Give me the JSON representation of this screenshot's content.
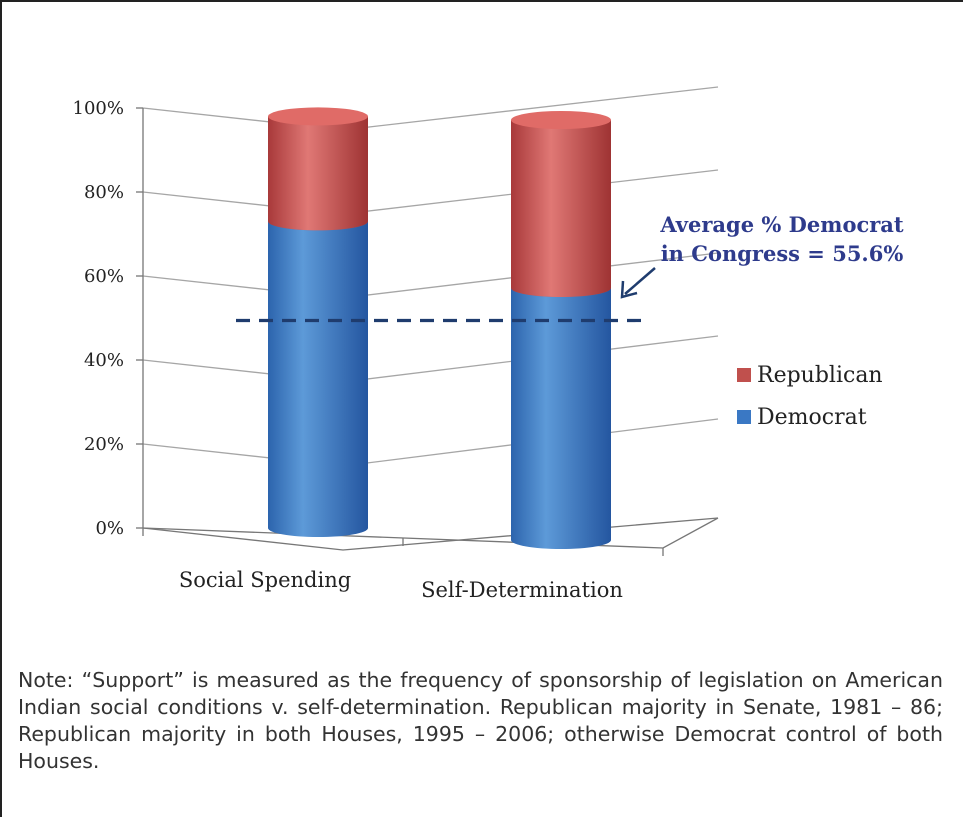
{
  "chart_data": {
    "type": "bar",
    "stacked": true,
    "categories": [
      "Social Spending",
      "Self-Determination"
    ],
    "series": [
      {
        "name": "Democrat",
        "values": [
          73,
          60
        ],
        "color": "#3a78c4"
      },
      {
        "name": "Republican",
        "values": [
          25,
          40
        ],
        "color": "#c0504d"
      }
    ],
    "y_ticks": [
      "0%",
      "20%",
      "40%",
      "60%",
      "80%",
      "100%"
    ],
    "ylim": [
      0,
      100
    ],
    "grid": true,
    "legend_position": "right",
    "reference_line": {
      "value": 55.6,
      "style": "dashed",
      "color": "#1f3c6e"
    },
    "annotation": {
      "line1": "Average % Democrat",
      "line2": "in Congress = 55.6%"
    }
  },
  "note": "Note: “Support” is measured as the frequency of sponsorship of legislation on American Indian social conditions v. self-determination. Republican majority in Senate, 1981 – 86; Republican majority in both Houses, 1995 – 2006; otherwise Democrat control of both Houses."
}
